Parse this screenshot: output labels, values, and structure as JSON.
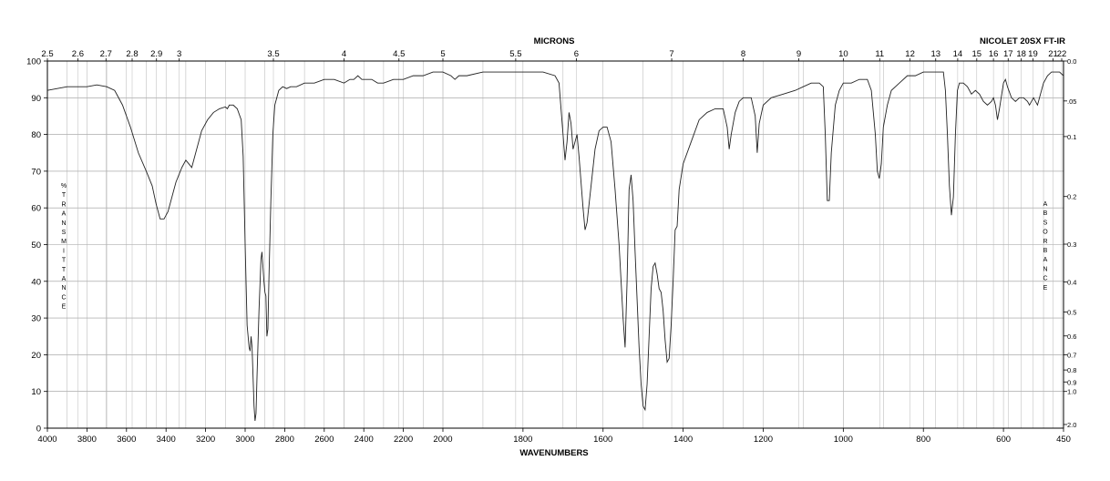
{
  "chart_data": {
    "type": "line",
    "title": "NICOLET 20SX FT-IR",
    "top_axis_label": "MICRONS",
    "xlabel": "WAVENUMBERS",
    "ylabel": "%TRANSMITTANCE",
    "right_label": "ABSORBANCE",
    "x_range": [
      4000,
      450
    ],
    "y_range": [
      0,
      100
    ],
    "grid": true,
    "x_ticks": [
      "4000",
      "3800",
      "3600",
      "3400",
      "3200",
      "3000",
      "2800",
      "2600",
      "2400",
      "2200",
      "2000",
      "1800",
      "1600",
      "1400",
      "1200",
      "1000",
      "800",
      "600",
      "450"
    ],
    "y_ticks": [
      "0",
      "10",
      "20",
      "30",
      "40",
      "50",
      "60",
      "70",
      "80",
      "90",
      "100"
    ],
    "micron_ticks": [
      "2.5",
      "2.6",
      "2.7",
      "2.8",
      "2.9",
      "3",
      "3.5",
      "4",
      "4.5",
      "5",
      "5.5",
      "6",
      "7",
      "8",
      "9",
      "10",
      "11",
      "12",
      "13",
      "14",
      "15",
      "16",
      "17",
      "18",
      "19",
      "21",
      "22"
    ],
    "absorbance_ticks": [
      "0.0",
      ".05",
      "0.1",
      "0.2",
      "0.3",
      "0.4",
      "0.5",
      "0.6",
      "0.7",
      "0.8",
      "0.9",
      "1.0",
      "2.0"
    ],
    "series": [
      {
        "color": "#222222",
        "points": [
          [
            4000,
            92
          ],
          [
            3950,
            92.5
          ],
          [
            3900,
            93
          ],
          [
            3850,
            93
          ],
          [
            3800,
            93
          ],
          [
            3750,
            93.5
          ],
          [
            3700,
            93
          ],
          [
            3660,
            92
          ],
          [
            3620,
            88
          ],
          [
            3580,
            82
          ],
          [
            3540,
            75
          ],
          [
            3500,
            70
          ],
          [
            3470,
            66
          ],
          [
            3450,
            61
          ],
          [
            3430,
            57
          ],
          [
            3410,
            57
          ],
          [
            3390,
            59
          ],
          [
            3370,
            63
          ],
          [
            3350,
            67
          ],
          [
            3320,
            71
          ],
          [
            3300,
            73
          ],
          [
            3285,
            72
          ],
          [
            3270,
            71
          ],
          [
            3250,
            75
          ],
          [
            3220,
            81
          ],
          [
            3190,
            84
          ],
          [
            3160,
            86
          ],
          [
            3130,
            87
          ],
          [
            3100,
            87.5
          ],
          [
            3090,
            87
          ],
          [
            3080,
            88
          ],
          [
            3060,
            88
          ],
          [
            3040,
            87
          ],
          [
            3020,
            84
          ],
          [
            3010,
            74
          ],
          [
            3000,
            50
          ],
          [
            2990,
            28
          ],
          [
            2980,
            22
          ],
          [
            2975,
            21
          ],
          [
            2970,
            25
          ],
          [
            2965,
            22
          ],
          [
            2960,
            14
          ],
          [
            2955,
            6
          ],
          [
            2950,
            2
          ],
          [
            2945,
            4
          ],
          [
            2940,
            14
          ],
          [
            2930,
            32
          ],
          [
            2920,
            46
          ],
          [
            2915,
            48
          ],
          [
            2910,
            44
          ],
          [
            2905,
            40
          ],
          [
            2900,
            37
          ],
          [
            2895,
            36
          ],
          [
            2890,
            25
          ],
          [
            2885,
            27
          ],
          [
            2880,
            40
          ],
          [
            2870,
            62
          ],
          [
            2860,
            80
          ],
          [
            2850,
            88
          ],
          [
            2830,
            92
          ],
          [
            2810,
            93
          ],
          [
            2790,
            92.5
          ],
          [
            2770,
            93
          ],
          [
            2740,
            93
          ],
          [
            2700,
            94
          ],
          [
            2650,
            94
          ],
          [
            2600,
            95
          ],
          [
            2550,
            95
          ],
          [
            2500,
            94
          ],
          [
            2470,
            95
          ],
          [
            2450,
            95
          ],
          [
            2430,
            96
          ],
          [
            2410,
            95
          ],
          [
            2380,
            95
          ],
          [
            2360,
            95
          ],
          [
            2330,
            94
          ],
          [
            2300,
            94
          ],
          [
            2250,
            95
          ],
          [
            2200,
            95
          ],
          [
            2150,
            96
          ],
          [
            2100,
            96
          ],
          [
            2050,
            97
          ],
          [
            2000,
            97
          ],
          [
            1980,
            96
          ],
          [
            1970,
            95
          ],
          [
            1960,
            96
          ],
          [
            1940,
            96
          ],
          [
            1900,
            97
          ],
          [
            1850,
            97
          ],
          [
            1800,
            97
          ],
          [
            1750,
            97
          ],
          [
            1720,
            96
          ],
          [
            1710,
            94
          ],
          [
            1700,
            80
          ],
          [
            1695,
            73
          ],
          [
            1690,
            78
          ],
          [
            1685,
            86
          ],
          [
            1680,
            83
          ],
          [
            1675,
            76
          ],
          [
            1670,
            78
          ],
          [
            1665,
            80
          ],
          [
            1660,
            74
          ],
          [
            1650,
            60
          ],
          [
            1645,
            54
          ],
          [
            1640,
            56
          ],
          [
            1630,
            66
          ],
          [
            1620,
            76
          ],
          [
            1610,
            81
          ],
          [
            1600,
            82
          ],
          [
            1590,
            82
          ],
          [
            1580,
            78
          ],
          [
            1570,
            65
          ],
          [
            1560,
            50
          ],
          [
            1555,
            40
          ],
          [
            1550,
            30
          ],
          [
            1545,
            22
          ],
          [
            1540,
            40
          ],
          [
            1535,
            65
          ],
          [
            1530,
            69
          ],
          [
            1525,
            62
          ],
          [
            1520,
            48
          ],
          [
            1515,
            35
          ],
          [
            1510,
            22
          ],
          [
            1505,
            12
          ],
          [
            1500,
            6
          ],
          [
            1495,
            5
          ],
          [
            1490,
            12
          ],
          [
            1485,
            25
          ],
          [
            1480,
            38
          ],
          [
            1475,
            44
          ],
          [
            1470,
            45
          ],
          [
            1465,
            42
          ],
          [
            1460,
            38
          ],
          [
            1455,
            37
          ],
          [
            1450,
            32
          ],
          [
            1445,
            24
          ],
          [
            1440,
            18
          ],
          [
            1435,
            19
          ],
          [
            1430,
            28
          ],
          [
            1425,
            40
          ],
          [
            1420,
            54
          ],
          [
            1415,
            55
          ],
          [
            1410,
            65
          ],
          [
            1400,
            72
          ],
          [
            1380,
            78
          ],
          [
            1360,
            84
          ],
          [
            1340,
            86
          ],
          [
            1320,
            87
          ],
          [
            1300,
            87
          ],
          [
            1290,
            82
          ],
          [
            1285,
            76
          ],
          [
            1280,
            80
          ],
          [
            1270,
            86
          ],
          [
            1260,
            89
          ],
          [
            1250,
            90
          ],
          [
            1230,
            90
          ],
          [
            1220,
            85
          ],
          [
            1215,
            75
          ],
          [
            1210,
            83
          ],
          [
            1200,
            88
          ],
          [
            1180,
            90
          ],
          [
            1150,
            91
          ],
          [
            1120,
            92
          ],
          [
            1100,
            93
          ],
          [
            1080,
            94
          ],
          [
            1060,
            94
          ],
          [
            1050,
            93
          ],
          [
            1045,
            80
          ],
          [
            1040,
            62
          ],
          [
            1035,
            62
          ],
          [
            1030,
            75
          ],
          [
            1020,
            88
          ],
          [
            1010,
            92
          ],
          [
            1000,
            94
          ],
          [
            980,
            94
          ],
          [
            960,
            95
          ],
          [
            940,
            95
          ],
          [
            930,
            92
          ],
          [
            920,
            80
          ],
          [
            915,
            70
          ],
          [
            910,
            68
          ],
          [
            905,
            72
          ],
          [
            900,
            82
          ],
          [
            890,
            88
          ],
          [
            880,
            92
          ],
          [
            860,
            94
          ],
          [
            840,
            96
          ],
          [
            820,
            96
          ],
          [
            800,
            97
          ],
          [
            780,
            97
          ],
          [
            760,
            97
          ],
          [
            750,
            97
          ],
          [
            745,
            92
          ],
          [
            740,
            80
          ],
          [
            735,
            66
          ],
          [
            730,
            58
          ],
          [
            725,
            63
          ],
          [
            720,
            80
          ],
          [
            715,
            92
          ],
          [
            710,
            94
          ],
          [
            700,
            94
          ],
          [
            690,
            93
          ],
          [
            680,
            91
          ],
          [
            670,
            92
          ],
          [
            660,
            91
          ],
          [
            650,
            89
          ],
          [
            640,
            88
          ],
          [
            630,
            89
          ],
          [
            625,
            90
          ],
          [
            620,
            88
          ],
          [
            615,
            84
          ],
          [
            610,
            87
          ],
          [
            600,
            94
          ],
          [
            595,
            95
          ],
          [
            590,
            93
          ],
          [
            580,
            90
          ],
          [
            570,
            89
          ],
          [
            560,
            90
          ],
          [
            550,
            90
          ],
          [
            540,
            89
          ],
          [
            535,
            88
          ],
          [
            530,
            89
          ],
          [
            525,
            90
          ],
          [
            520,
            89
          ],
          [
            515,
            88
          ],
          [
            510,
            90
          ],
          [
            500,
            94
          ],
          [
            490,
            96
          ],
          [
            480,
            97
          ],
          [
            470,
            97
          ],
          [
            460,
            97
          ],
          [
            450,
            96
          ]
        ]
      }
    ]
  }
}
